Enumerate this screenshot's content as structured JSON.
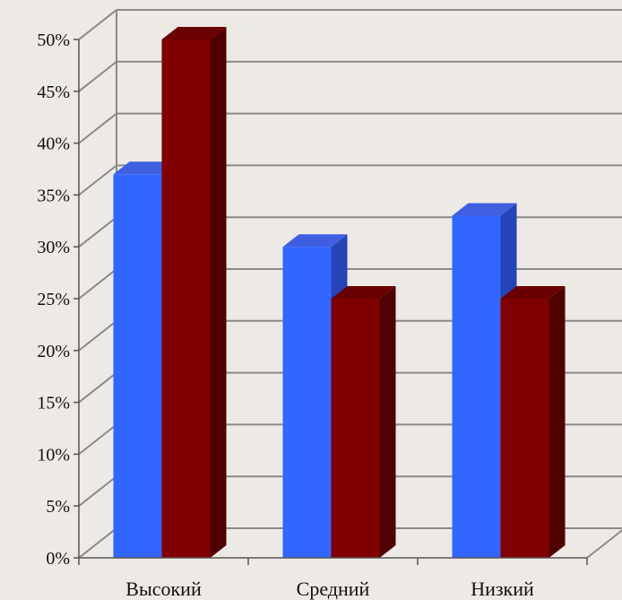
{
  "chart_data": {
    "type": "bar",
    "categories": [
      "Высокий",
      "Средний",
      "Низкий"
    ],
    "series": [
      {
        "values": [
          37,
          30,
          33
        ]
      },
      {
        "values": [
          50,
          25,
          25
        ]
      }
    ],
    "ylim": [
      0,
      50
    ],
    "yticks": [
      "0%",
      "5%",
      "10%",
      "15%",
      "20%",
      "25%",
      "30%",
      "35%",
      "40%",
      "45%",
      "50%"
    ],
    "grid": true,
    "colors": {
      "series_0": {
        "front": "#3366ff",
        "side": "#2444b8",
        "top": "#3f5fe0"
      },
      "series_1": {
        "front": "#800000",
        "side": "#4f0000",
        "top": "#6a0000"
      },
      "grid": "#8a8a8a",
      "background": "#ede9e5"
    }
  }
}
